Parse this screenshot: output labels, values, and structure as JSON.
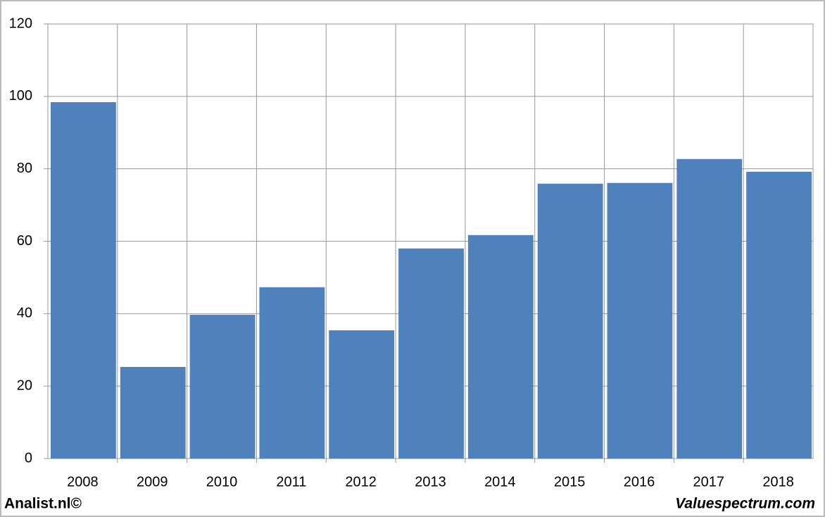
{
  "chart_data": {
    "type": "bar",
    "categories": [
      "2008",
      "2009",
      "2010",
      "2011",
      "2012",
      "2013",
      "2014",
      "2015",
      "2016",
      "2017",
      "2018"
    ],
    "values": [
      98.4,
      25.3,
      39.7,
      47.3,
      35.4,
      58.0,
      61.7,
      75.9,
      76.1,
      82.7,
      79.2
    ],
    "color": "#4f81bd",
    "ylim": [
      0,
      120
    ],
    "yticks": [
      0,
      20,
      40,
      60,
      80,
      100,
      120
    ],
    "grid": true,
    "footer_left": "Analist.nl©",
    "footer_right": "Valuespectrum.com"
  }
}
